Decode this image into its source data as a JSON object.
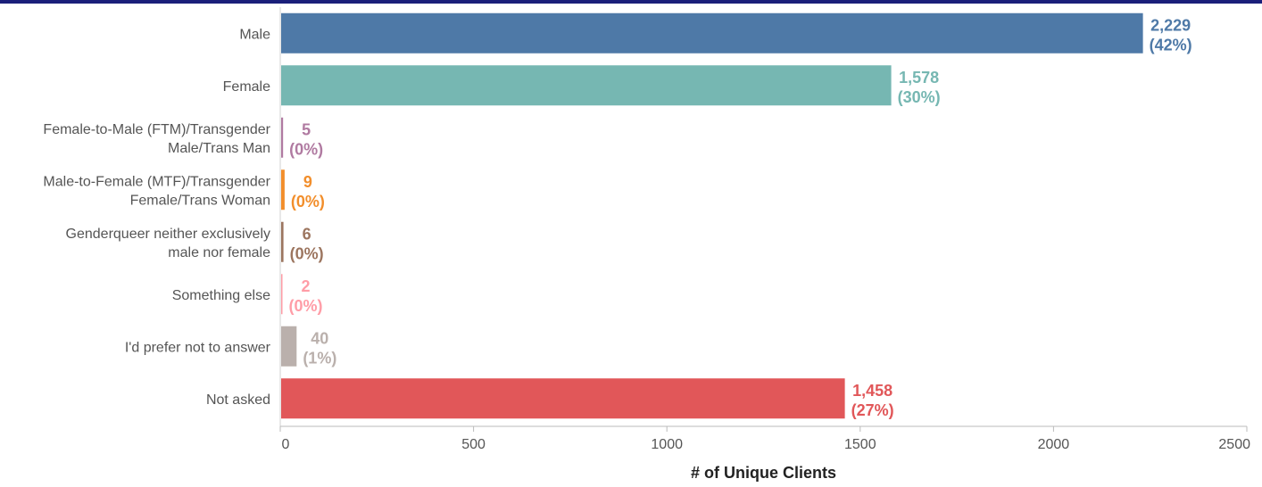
{
  "chart_data": {
    "type": "bar",
    "orientation": "horizontal",
    "categories": [
      "Male",
      "Female",
      "Female-to-Male (FTM)/Transgender Male/Trans Man",
      "Male-to-Female (MTF)/Transgender Female/Trans Woman",
      "Genderqueer neither exclusively male nor female",
      "Something else",
      "I'd prefer not to answer",
      "Not asked"
    ],
    "category_lines": [
      [
        "Male"
      ],
      [
        "Female"
      ],
      [
        "Female-to-Male (FTM)/Transgender",
        "Male/Trans Man"
      ],
      [
        "Male-to-Female (MTF)/Transgender",
        "Female/Trans Woman"
      ],
      [
        "Genderqueer neither exclusively",
        "male nor female"
      ],
      [
        "Something else"
      ],
      [
        "I'd prefer not to answer"
      ],
      [
        "Not asked"
      ]
    ],
    "values": [
      2229,
      1578,
      5,
      9,
      6,
      2,
      40,
      1458
    ],
    "value_labels": [
      "2,229",
      "1,578",
      "5",
      "9",
      "6",
      "2",
      "40",
      "1,458"
    ],
    "percent_labels": [
      "(42%)",
      "(30%)",
      "(0%)",
      "(0%)",
      "(0%)",
      "(0%)",
      "(1%)",
      "(27%)"
    ],
    "colors": [
      "#4e79a7",
      "#76b7b2",
      "#b07aa1",
      "#f28e2b",
      "#9c755f",
      "#ff9da7",
      "#bab0ac",
      "#e15759"
    ],
    "xlabel": "# of Unique Clients",
    "ylabel": "",
    "xlim": [
      0,
      2500
    ],
    "xticks": [
      0,
      500,
      1000,
      1500,
      2000,
      2500
    ],
    "grid": false,
    "legend": "none"
  }
}
